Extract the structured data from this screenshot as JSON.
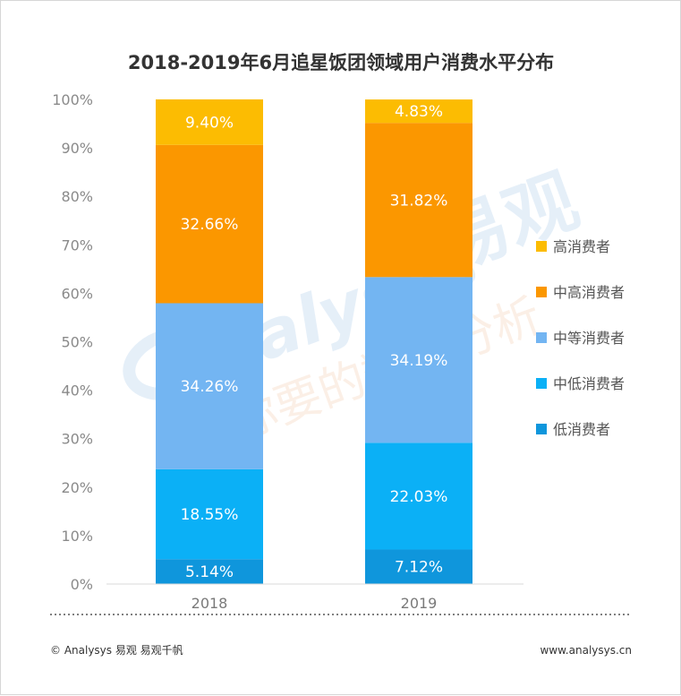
{
  "chart_data": {
    "type": "bar",
    "stacked": true,
    "title": "2018-2019年6月追星饭团领域用户消费水平分布",
    "categories": [
      "2018",
      "2019"
    ],
    "ylim": [
      0,
      100
    ],
    "y_ticks": [
      "0%",
      "10%",
      "20%",
      "30%",
      "40%",
      "50%",
      "60%",
      "70%",
      "80%",
      "90%",
      "100%"
    ],
    "series": [
      {
        "name": "低消费者",
        "color": "#0f96dc",
        "values": [
          5.14,
          7.12
        ],
        "labels": [
          "5.14%",
          "7.12%"
        ]
      },
      {
        "name": "中低消费者",
        "color": "#0bb0f6",
        "values": [
          18.55,
          22.03
        ],
        "labels": [
          "18.55%",
          "22.03%"
        ]
      },
      {
        "name": "中等消费者",
        "color": "#73b5f2",
        "values": [
          34.26,
          34.19
        ],
        "labels": [
          "34.26%",
          "34.19%"
        ]
      },
      {
        "name": "中高消费者",
        "color": "#fb9700",
        "values": [
          32.66,
          31.82
        ],
        "labels": [
          "32.66%",
          "31.82%"
        ]
      },
      {
        "name": "高消费者",
        "color": "#fcbc02",
        "values": [
          9.4,
          4.83
        ],
        "labels": [
          "9.40%",
          "4.83%"
        ]
      }
    ],
    "legend_position": "right",
    "legend_order": [
      "高消费者",
      "中高消费者",
      "中等消费者",
      "中低消费者",
      "低消费者"
    ],
    "grid": false
  },
  "watermark": {
    "brand_text": "易观",
    "latin_text": "nalysys",
    "slogan_text": "你要的数据分析"
  },
  "footer": {
    "copyright": "© Analysys 易观 易观千帆",
    "url": "www.analysys.cn"
  }
}
